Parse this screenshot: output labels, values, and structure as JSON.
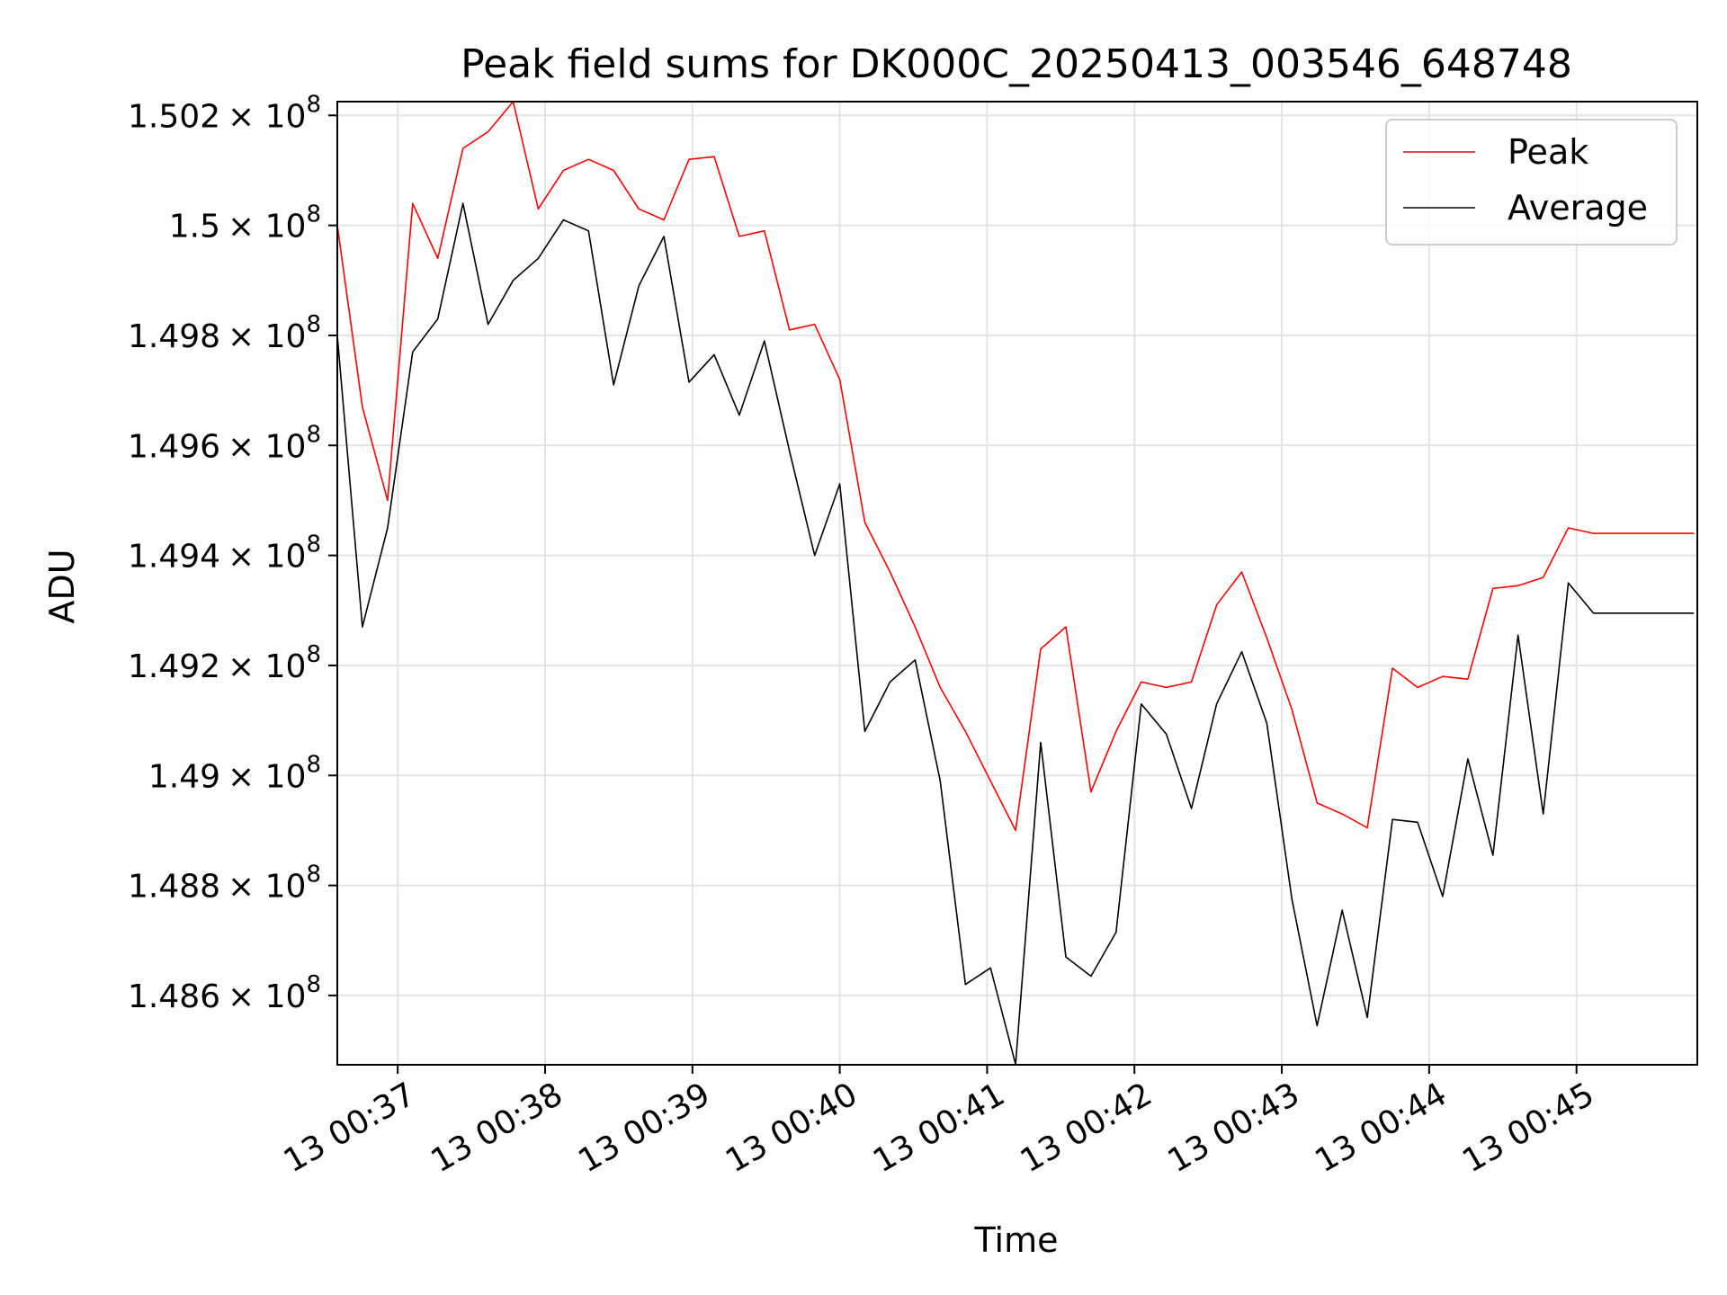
{
  "chart_data": {
    "type": "line",
    "title": "Peak field sums for DK000C_20250413_003546_648748",
    "xlabel": "Time",
    "ylabel": "ADU",
    "x_start_seconds": 36.59,
    "x_step_seconds": 0.1705,
    "xlim": [
      36.59,
      45.82
    ],
    "ylim": [
      148.474,
      150.225
    ],
    "y_units_note": "values in units of 1e6 ADU",
    "xticks": [
      {
        "value": 37,
        "label": "13 00:37"
      },
      {
        "value": 38,
        "label": "13 00:38"
      },
      {
        "value": 39,
        "label": "13 00:39"
      },
      {
        "value": 40,
        "label": "13 00:40"
      },
      {
        "value": 41,
        "label": "13 00:41"
      },
      {
        "value": 42,
        "label": "13 00:42"
      },
      {
        "value": 43,
        "label": "13 00:43"
      },
      {
        "value": 44,
        "label": "13 00:44"
      },
      {
        "value": 45,
        "label": "13 00:45"
      }
    ],
    "yticks": [
      {
        "value": 148.6,
        "mantissa": "1.486"
      },
      {
        "value": 148.8,
        "mantissa": "1.488"
      },
      {
        "value": 149.0,
        "mantissa": "1.49"
      },
      {
        "value": 149.2,
        "mantissa": "1.492"
      },
      {
        "value": 149.4,
        "mantissa": "1.494"
      },
      {
        "value": 149.6,
        "mantissa": "1.496"
      },
      {
        "value": 149.8,
        "mantissa": "1.498"
      },
      {
        "value": 150.0,
        "mantissa": "1.5"
      },
      {
        "value": 150.2,
        "mantissa": "1.502"
      }
    ],
    "ytick_suffix": "× 10",
    "ytick_exponent": "8",
    "grid": true,
    "legend": {
      "position": "upper-right"
    },
    "series": [
      {
        "name": "Peak",
        "color": "#ff0000",
        "values": [
          150.0,
          149.67,
          149.5,
          150.04,
          149.94,
          150.14,
          150.17,
          150.225,
          150.03,
          150.1,
          150.12,
          150.1,
          150.03,
          150.01,
          150.12,
          150.125,
          149.98,
          149.99,
          149.81,
          149.82,
          149.72,
          149.46,
          149.37,
          149.27,
          149.16,
          149.08,
          148.99,
          148.9,
          149.23,
          149.27,
          148.97,
          149.08,
          149.17,
          149.16,
          149.17,
          149.31,
          149.37,
          149.25,
          149.12,
          148.95,
          148.93,
          148.905,
          149.195,
          149.16,
          149.18,
          149.175,
          149.34,
          149.345,
          149.36,
          149.45,
          149.44,
          149.44,
          149.44,
          149.44,
          149.44
        ]
      },
      {
        "name": "Average",
        "color": "#000000",
        "values": [
          149.8,
          149.27,
          149.45,
          149.77,
          149.83,
          150.04,
          149.82,
          149.9,
          149.94,
          150.01,
          149.99,
          149.71,
          149.89,
          149.98,
          149.715,
          149.765,
          149.655,
          149.79,
          149.59,
          149.4,
          149.53,
          149.08,
          149.17,
          149.21,
          148.99,
          148.62,
          148.65,
          148.475,
          149.06,
          148.67,
          148.635,
          148.715,
          149.13,
          149.075,
          148.94,
          149.13,
          149.225,
          149.095,
          148.775,
          148.545,
          148.755,
          148.56,
          148.92,
          148.915,
          148.78,
          149.03,
          148.855,
          149.255,
          148.93,
          149.35,
          149.295,
          149.295,
          149.295,
          149.295,
          149.295
        ]
      }
    ]
  }
}
